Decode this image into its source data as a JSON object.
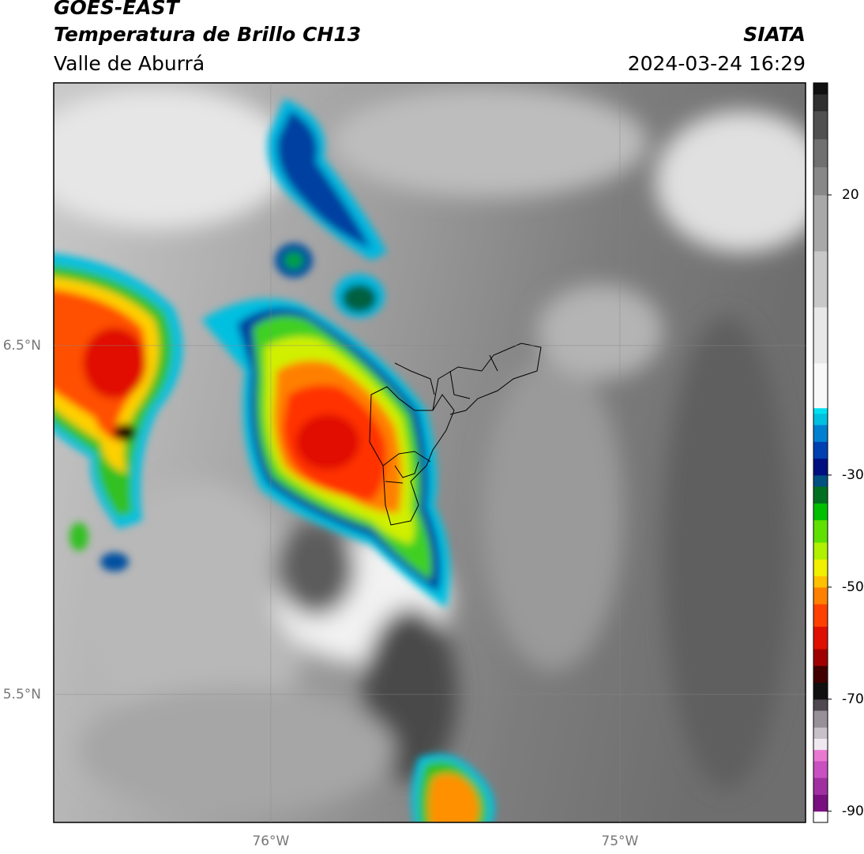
{
  "header": {
    "title": "GOES-EAST",
    "subtitle": "Temperatura de Brillo CH13",
    "region": "Valle de Aburrá",
    "source": "SIATA",
    "datetime": "2024-03-24 16:29"
  },
  "map": {
    "xlim": [
      -76.622,
      -74.468
    ],
    "ylim": [
      5.133,
      7.253
    ],
    "xticks": [
      {
        "value": -76,
        "label": "76°W"
      },
      {
        "value": -75,
        "label": "75°W"
      }
    ],
    "yticks": [
      {
        "value": 6.5,
        "label": "6.5°N"
      },
      {
        "value": 5.5,
        "label": "5.5°N"
      }
    ],
    "grid": true
  },
  "colorbar": {
    "lim": [
      -92,
      40
    ],
    "ticks": [
      20,
      -30,
      -50,
      -70,
      -90
    ],
    "stops": [
      [
        -92,
        "#ffffff"
      ],
      [
        -90,
        "#7a1080"
      ],
      [
        -87,
        "#a030a0"
      ],
      [
        -84,
        "#c850c0"
      ],
      [
        -81,
        "#e878d0"
      ],
      [
        -79,
        "#f0e8f0"
      ],
      [
        -77,
        "#c8c0c8"
      ],
      [
        -75,
        "#989098"
      ],
      [
        -72,
        "#504850"
      ],
      [
        -70,
        "#101010"
      ],
      [
        -67,
        "#400000"
      ],
      [
        -64,
        "#a00000"
      ],
      [
        -61,
        "#e01000"
      ],
      [
        -57,
        "#ff4000"
      ],
      [
        -53,
        "#ff8000"
      ],
      [
        -50,
        "#ffc000"
      ],
      [
        -48,
        "#f0f000"
      ],
      [
        -45,
        "#b0f000"
      ],
      [
        -42,
        "#60e000"
      ],
      [
        -38,
        "#00c000"
      ],
      [
        -35,
        "#007020"
      ],
      [
        -32,
        "#005080"
      ],
      [
        -30,
        "#001080"
      ],
      [
        -27,
        "#0040b0"
      ],
      [
        -24,
        "#0080d0"
      ],
      [
        -21,
        "#00c0e0"
      ],
      [
        -19,
        "#00e0f0"
      ],
      [
        -18,
        "#f8f8f8"
      ],
      [
        -10,
        "#e8e8e8"
      ],
      [
        0,
        "#c8c8c8"
      ],
      [
        10,
        "#a8a8a8"
      ],
      [
        20,
        "#888888"
      ],
      [
        25,
        "#707070"
      ],
      [
        30,
        "#505050"
      ],
      [
        35,
        "#303030"
      ],
      [
        38,
        "#101010"
      ]
    ]
  }
}
